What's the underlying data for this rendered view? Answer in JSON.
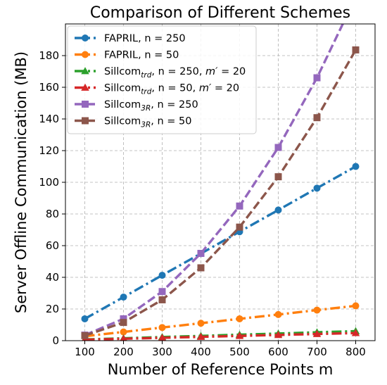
{
  "chart_data": {
    "type": "line",
    "title": "Comparison of Different Schemes",
    "xlabel": "Number of Reference Points m",
    "ylabel": "Server Offline Communication (MB)",
    "x": [
      100,
      200,
      300,
      400,
      500,
      600,
      700,
      800
    ],
    "xticks": [
      "100",
      "200",
      "300",
      "400",
      "500",
      "600",
      "700",
      "800"
    ],
    "yticks": [
      "0",
      "20",
      "40",
      "60",
      "80",
      "100",
      "120",
      "140",
      "160",
      "180"
    ],
    "xlim": [
      50,
      850
    ],
    "ylim": [
      0,
      200
    ],
    "grid": true,
    "legend_position": "upper-left",
    "series": [
      {
        "label_parts": [
          "FAPRIL, n = 250"
        ],
        "color": "#1f77b4",
        "marker": "circle",
        "dash": "dashdot",
        "values": [
          13.8,
          27.5,
          41.3,
          55.0,
          68.8,
          82.5,
          96.3,
          110.0
        ]
      },
      {
        "label_parts": [
          "FAPRIL, n = 50"
        ],
        "color": "#ff7f0e",
        "marker": "circle",
        "dash": "dashdot",
        "values": [
          2.8,
          5.5,
          8.3,
          11.0,
          13.8,
          16.5,
          19.3,
          22.0
        ]
      },
      {
        "label_parts": [
          "Sillcom",
          "trd",
          ", n = 250, ",
          "m′",
          " = 20"
        ],
        "color": "#2ca02c",
        "marker": "triangle",
        "dash": "dashdot",
        "values": [
          0.8,
          1.5,
          2.3,
          3.0,
          3.8,
          4.5,
          5.3,
          6.0
        ]
      },
      {
        "label_parts": [
          "Sillcom",
          "trd",
          ", n = 50, ",
          "m′",
          " = 20"
        ],
        "color": "#d62728",
        "marker": "triangle",
        "dash": "dashdot",
        "values": [
          0.6,
          1.2,
          1.8,
          2.4,
          3.0,
          3.6,
          4.2,
          4.8
        ]
      },
      {
        "label_parts": [
          "Sillcom",
          "3R",
          ", n = 250"
        ],
        "color": "#9467bd",
        "marker": "square",
        "dash": "dashed",
        "values": [
          3.5,
          13.8,
          31.0,
          55.1,
          85.0,
          122.0,
          166.0,
          217.0
        ]
      },
      {
        "label_parts": [
          "Sillcom",
          "3R",
          ", n = 50"
        ],
        "color": "#8c564b",
        "marker": "square",
        "dash": "dashed",
        "values": [
          3.2,
          11.5,
          25.8,
          46.0,
          71.7,
          103.5,
          140.8,
          183.6
        ]
      }
    ]
  }
}
